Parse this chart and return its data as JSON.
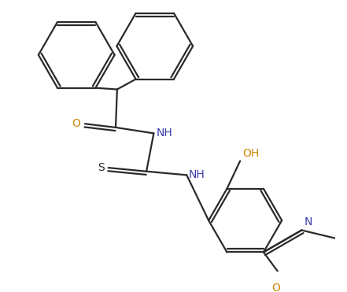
{
  "bg_color": "#ffffff",
  "line_color": "#2a2a2a",
  "n_color": "#3a3aaa",
  "o_color": "#cc8800",
  "s_color": "#2a2a2a",
  "line_width": 1.6,
  "font_size": 10,
  "figsize": [
    4.41,
    3.71
  ],
  "dpi": 100,
  "xlim": [
    0,
    441
  ],
  "ylim": [
    0,
    371
  ]
}
